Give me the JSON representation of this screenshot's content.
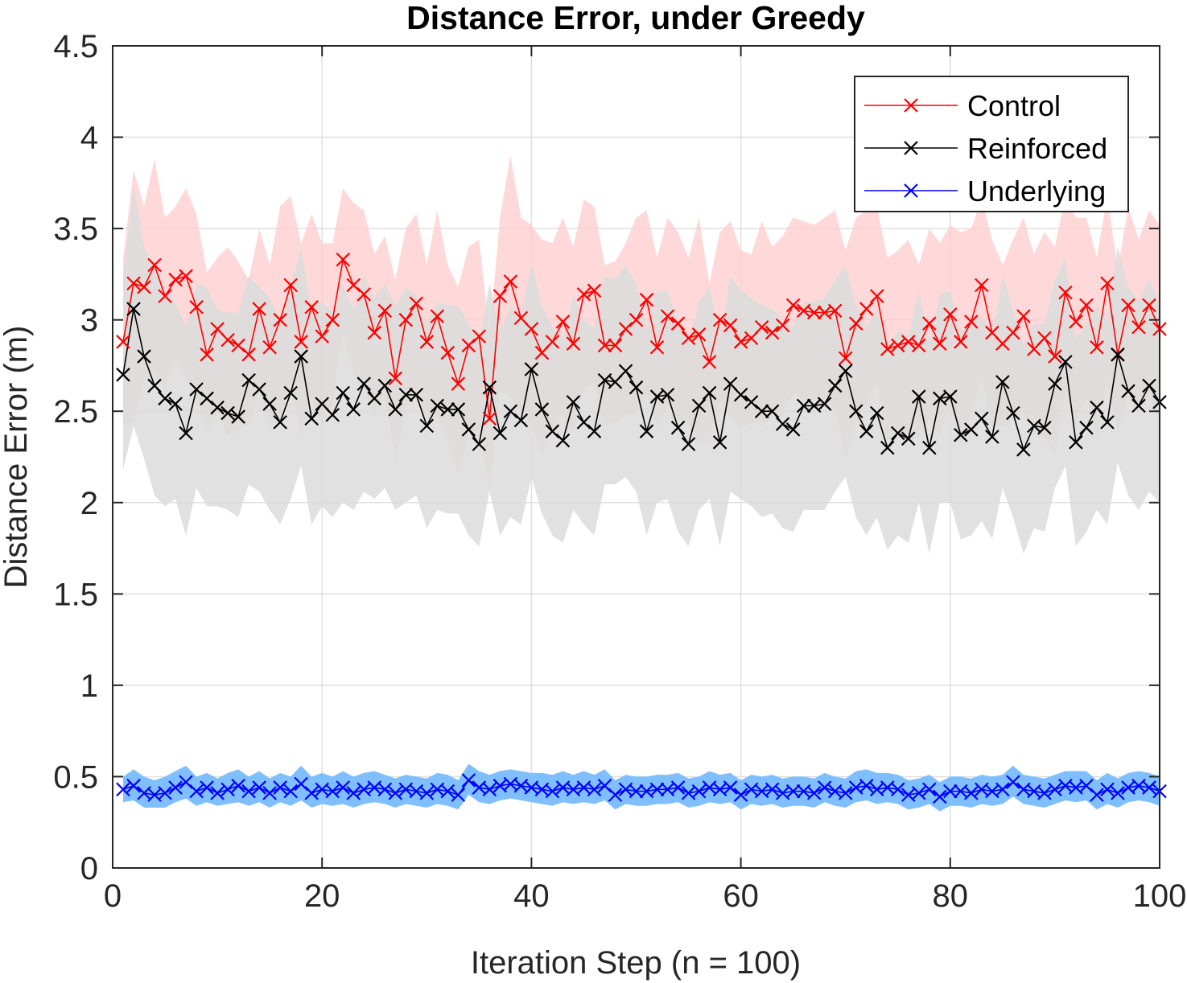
{
  "chart_data": {
    "type": "line",
    "title": "Distance Error, under Greedy",
    "xlabel": "Iteration Step (n = 100)",
    "ylabel": "Distance Error (m)",
    "xlim": [
      0,
      100
    ],
    "ylim": [
      0,
      4.5
    ],
    "xticks": [
      0,
      20,
      40,
      60,
      80,
      100
    ],
    "xtick_labels": [
      "0",
      "20",
      "40",
      "60",
      "80",
      "100"
    ],
    "yticks": [
      0,
      0.5,
      1,
      1.5,
      2,
      2.5,
      3,
      3.5,
      4,
      4.5
    ],
    "ytick_labels": [
      "0",
      "0.5",
      "1",
      "1.5",
      "2",
      "2.5",
      "3",
      "3.5",
      "4",
      "4.5"
    ],
    "grid": true,
    "legend_position": "top-right",
    "series": [
      {
        "name": "Control",
        "color": "#ff0000",
        "band_color": "#ffcccc",
        "marker": "x",
        "values": [
          2.88,
          3.2,
          3.18,
          3.3,
          3.13,
          3.22,
          3.24,
          3.07,
          2.81,
          2.95,
          2.89,
          2.86,
          2.81,
          3.06,
          2.85,
          3.0,
          3.19,
          2.88,
          3.07,
          2.91,
          3.0,
          3.33,
          3.19,
          3.14,
          2.93,
          3.05,
          2.68,
          3.0,
          3.09,
          2.88,
          3.02,
          2.82,
          2.65,
          2.86,
          2.91,
          2.46,
          3.13,
          3.21,
          3.01,
          2.95,
          2.82,
          2.88,
          2.99,
          2.87,
          3.14,
          3.16,
          2.86,
          2.86,
          2.95,
          3.0,
          3.11,
          2.85,
          3.02,
          2.98,
          2.9,
          2.92,
          2.77,
          3.0,
          2.97,
          2.88,
          2.9,
          2.96,
          2.93,
          2.97,
          3.08,
          3.05,
          3.04,
          3.04,
          3.05,
          2.79,
          2.98,
          3.06,
          3.13,
          2.84,
          2.86,
          2.88,
          2.86,
          2.98,
          2.87,
          3.03,
          2.88,
          2.99,
          3.19,
          2.93,
          2.87,
          2.93,
          3.02,
          2.84,
          2.9,
          2.8,
          3.15,
          2.99,
          3.08,
          2.85,
          3.2,
          2.81,
          3.08,
          2.96,
          3.08,
          2.95
        ],
        "band_upper": [
          3.34,
          3.82,
          3.62,
          3.88,
          3.56,
          3.62,
          3.72,
          3.58,
          3.26,
          3.34,
          3.4,
          3.32,
          3.22,
          3.5,
          3.3,
          3.62,
          3.68,
          3.42,
          3.58,
          3.42,
          3.42,
          3.72,
          3.64,
          3.6,
          3.36,
          3.46,
          3.22,
          3.5,
          3.58,
          3.3,
          3.6,
          3.3,
          3.18,
          3.4,
          3.44,
          2.92,
          3.56,
          3.9,
          3.56,
          3.52,
          3.44,
          3.42,
          3.56,
          3.4,
          3.66,
          3.62,
          3.3,
          3.32,
          3.42,
          3.56,
          3.6,
          3.34,
          3.56,
          3.48,
          3.34,
          3.56,
          3.2,
          3.48,
          3.54,
          3.38,
          3.36,
          3.54,
          3.4,
          3.46,
          3.56,
          3.54,
          3.52,
          3.56,
          3.6,
          3.38,
          3.56,
          3.6,
          3.62,
          3.34,
          3.38,
          3.44,
          3.3,
          3.5,
          3.42,
          3.52,
          3.48,
          3.5,
          3.66,
          3.44,
          3.3,
          3.44,
          3.56,
          3.36,
          3.48,
          3.4,
          3.68,
          3.56,
          3.56,
          3.34,
          3.68,
          3.28,
          3.62,
          3.44,
          3.6,
          3.52
        ],
        "band_lower": [
          2.42,
          2.44,
          2.68,
          2.72,
          2.62,
          2.8,
          2.68,
          2.58,
          2.38,
          2.5,
          2.36,
          2.4,
          2.42,
          2.62,
          2.4,
          2.46,
          2.66,
          2.36,
          2.58,
          2.42,
          2.54,
          2.94,
          2.7,
          2.64,
          2.46,
          2.62,
          2.2,
          2.52,
          2.62,
          2.42,
          2.48,
          2.34,
          2.16,
          2.38,
          2.4,
          2.06,
          2.62,
          2.58,
          2.5,
          2.42,
          2.26,
          2.4,
          2.48,
          2.38,
          2.62,
          2.66,
          2.42,
          2.44,
          2.48,
          2.48,
          2.6,
          2.4,
          2.54,
          2.46,
          2.42,
          2.32,
          2.32,
          2.56,
          2.46,
          2.4,
          2.44,
          2.42,
          2.46,
          2.48,
          2.6,
          2.56,
          2.56,
          2.54,
          2.52,
          2.24,
          2.44,
          2.54,
          2.66,
          2.34,
          2.38,
          2.34,
          2.36,
          2.46,
          2.36,
          2.54,
          2.32,
          2.5,
          2.68,
          2.42,
          2.42,
          2.44,
          2.5,
          2.36,
          2.36,
          2.26,
          2.62,
          2.44,
          2.58,
          2.34,
          2.68,
          2.38,
          2.58,
          2.48,
          2.58,
          2.44
        ]
      },
      {
        "name": "Reinforced",
        "color": "#000000",
        "band_color": "#dcdcdc",
        "marker": "x",
        "values": [
          2.7,
          3.06,
          2.8,
          2.64,
          2.57,
          2.54,
          2.38,
          2.62,
          2.57,
          2.52,
          2.49,
          2.47,
          2.67,
          2.62,
          2.54,
          2.44,
          2.6,
          2.8,
          2.46,
          2.54,
          2.48,
          2.6,
          2.51,
          2.65,
          2.57,
          2.64,
          2.51,
          2.59,
          2.59,
          2.42,
          2.53,
          2.51,
          2.51,
          2.4,
          2.32,
          2.63,
          2.38,
          2.5,
          2.45,
          2.73,
          2.51,
          2.39,
          2.34,
          2.55,
          2.44,
          2.39,
          2.67,
          2.66,
          2.72,
          2.63,
          2.39,
          2.58,
          2.59,
          2.41,
          2.32,
          2.53,
          2.6,
          2.33,
          2.65,
          2.59,
          2.55,
          2.5,
          2.5,
          2.43,
          2.4,
          2.53,
          2.53,
          2.54,
          2.64,
          2.72,
          2.5,
          2.39,
          2.49,
          2.3,
          2.38,
          2.35,
          2.58,
          2.3,
          2.57,
          2.58,
          2.37,
          2.4,
          2.46,
          2.36,
          2.66,
          2.49,
          2.29,
          2.42,
          2.41,
          2.65,
          2.77,
          2.33,
          2.41,
          2.52,
          2.44,
          2.81,
          2.61,
          2.53,
          2.64,
          2.55
        ],
        "band_upper": [
          3.24,
          3.74,
          3.4,
          3.28,
          3.16,
          3.1,
          2.96,
          3.2,
          3.18,
          3.06,
          3.04,
          3.04,
          3.24,
          3.18,
          3.12,
          3.0,
          3.18,
          3.4,
          3.04,
          3.1,
          3.04,
          3.2,
          3.06,
          3.24,
          3.12,
          3.2,
          3.08,
          3.18,
          3.14,
          2.98,
          3.1,
          3.08,
          3.08,
          2.98,
          2.88,
          3.2,
          2.94,
          3.08,
          3.02,
          3.32,
          3.08,
          2.96,
          2.9,
          3.14,
          3.0,
          2.96,
          3.24,
          3.22,
          3.3,
          3.2,
          2.96,
          3.16,
          3.16,
          2.98,
          2.88,
          3.1,
          3.18,
          2.9,
          3.24,
          3.16,
          3.12,
          3.08,
          3.06,
          3.0,
          2.96,
          3.1,
          3.1,
          3.12,
          3.22,
          3.3,
          3.08,
          2.96,
          3.06,
          2.86,
          2.94,
          2.92,
          3.16,
          2.88,
          3.14,
          3.16,
          2.94,
          2.98,
          3.02,
          2.92,
          3.24,
          3.06,
          2.86,
          2.98,
          2.98,
          3.22,
          3.34,
          2.9,
          2.98,
          3.08,
          3.0,
          3.4,
          3.18,
          3.1,
          3.22,
          3.1
        ],
        "band_lower": [
          2.18,
          2.42,
          2.24,
          2.04,
          1.98,
          2.02,
          1.82,
          2.08,
          1.98,
          1.98,
          1.96,
          1.92,
          2.1,
          2.06,
          1.96,
          1.88,
          2.02,
          2.2,
          1.88,
          1.98,
          1.92,
          2.0,
          1.96,
          2.06,
          2.02,
          2.08,
          1.96,
          2.0,
          2.04,
          1.86,
          1.96,
          1.94,
          1.94,
          1.82,
          1.76,
          2.06,
          1.82,
          1.92,
          1.88,
          2.14,
          1.94,
          1.82,
          1.78,
          1.96,
          1.88,
          1.82,
          2.1,
          2.1,
          2.14,
          2.06,
          1.82,
          2.0,
          2.02,
          1.84,
          1.76,
          1.96,
          2.02,
          1.76,
          2.06,
          2.02,
          1.98,
          1.92,
          1.94,
          1.86,
          1.84,
          1.96,
          1.96,
          1.96,
          2.06,
          2.14,
          1.92,
          1.82,
          1.92,
          1.74,
          1.82,
          1.78,
          2.0,
          1.72,
          2.0,
          2.0,
          1.8,
          1.82,
          1.9,
          1.8,
          2.08,
          1.92,
          1.72,
          1.86,
          1.84,
          2.08,
          2.2,
          1.76,
          1.84,
          1.96,
          1.88,
          2.22,
          2.04,
          1.96,
          2.06,
          2.0
        ]
      },
      {
        "name": "Underlying",
        "color": "#0000ff",
        "band_color": "#80bfff",
        "marker": "x",
        "values": [
          0.43,
          0.45,
          0.41,
          0.4,
          0.41,
          0.44,
          0.47,
          0.42,
          0.44,
          0.41,
          0.43,
          0.45,
          0.42,
          0.44,
          0.41,
          0.44,
          0.42,
          0.46,
          0.41,
          0.43,
          0.42,
          0.44,
          0.41,
          0.43,
          0.44,
          0.43,
          0.41,
          0.43,
          0.42,
          0.41,
          0.43,
          0.42,
          0.4,
          0.48,
          0.44,
          0.43,
          0.45,
          0.46,
          0.45,
          0.44,
          0.43,
          0.42,
          0.44,
          0.43,
          0.44,
          0.43,
          0.45,
          0.4,
          0.43,
          0.42,
          0.42,
          0.43,
          0.43,
          0.44,
          0.41,
          0.42,
          0.44,
          0.43,
          0.44,
          0.4,
          0.43,
          0.42,
          0.43,
          0.41,
          0.42,
          0.42,
          0.41,
          0.44,
          0.42,
          0.41,
          0.44,
          0.45,
          0.43,
          0.44,
          0.43,
          0.4,
          0.41,
          0.43,
          0.39,
          0.42,
          0.42,
          0.41,
          0.43,
          0.42,
          0.43,
          0.47,
          0.43,
          0.42,
          0.41,
          0.43,
          0.45,
          0.44,
          0.45,
          0.4,
          0.43,
          0.41,
          0.44,
          0.45,
          0.44,
          0.42
        ],
        "band_upper": [
          0.5,
          0.54,
          0.5,
          0.48,
          0.5,
          0.53,
          0.56,
          0.5,
          0.52,
          0.49,
          0.52,
          0.54,
          0.5,
          0.53,
          0.49,
          0.52,
          0.5,
          0.56,
          0.5,
          0.52,
          0.5,
          0.53,
          0.5,
          0.52,
          0.53,
          0.51,
          0.49,
          0.51,
          0.5,
          0.49,
          0.52,
          0.51,
          0.48,
          0.57,
          0.53,
          0.51,
          0.53,
          0.54,
          0.53,
          0.52,
          0.52,
          0.51,
          0.53,
          0.51,
          0.53,
          0.51,
          0.54,
          0.48,
          0.51,
          0.5,
          0.5,
          0.51,
          0.51,
          0.52,
          0.49,
          0.5,
          0.53,
          0.51,
          0.52,
          0.48,
          0.51,
          0.5,
          0.51,
          0.49,
          0.5,
          0.5,
          0.49,
          0.52,
          0.5,
          0.49,
          0.53,
          0.54,
          0.52,
          0.52,
          0.51,
          0.48,
          0.49,
          0.51,
          0.47,
          0.5,
          0.5,
          0.49,
          0.51,
          0.5,
          0.51,
          0.56,
          0.51,
          0.5,
          0.49,
          0.51,
          0.53,
          0.53,
          0.53,
          0.48,
          0.52,
          0.49,
          0.52,
          0.53,
          0.52,
          0.5
        ],
        "band_lower": [
          0.36,
          0.37,
          0.33,
          0.33,
          0.33,
          0.36,
          0.38,
          0.34,
          0.36,
          0.34,
          0.35,
          0.36,
          0.34,
          0.36,
          0.33,
          0.36,
          0.34,
          0.37,
          0.33,
          0.35,
          0.34,
          0.35,
          0.33,
          0.35,
          0.36,
          0.35,
          0.33,
          0.35,
          0.34,
          0.33,
          0.35,
          0.34,
          0.32,
          0.4,
          0.36,
          0.35,
          0.37,
          0.38,
          0.37,
          0.36,
          0.35,
          0.34,
          0.36,
          0.35,
          0.36,
          0.35,
          0.37,
          0.32,
          0.35,
          0.34,
          0.34,
          0.35,
          0.35,
          0.36,
          0.33,
          0.34,
          0.36,
          0.35,
          0.36,
          0.32,
          0.35,
          0.34,
          0.35,
          0.33,
          0.34,
          0.34,
          0.33,
          0.36,
          0.34,
          0.33,
          0.36,
          0.37,
          0.35,
          0.36,
          0.35,
          0.32,
          0.33,
          0.35,
          0.31,
          0.34,
          0.34,
          0.33,
          0.35,
          0.34,
          0.35,
          0.39,
          0.35,
          0.34,
          0.33,
          0.35,
          0.37,
          0.36,
          0.37,
          0.32,
          0.35,
          0.33,
          0.36,
          0.37,
          0.36,
          0.34
        ]
      }
    ]
  }
}
